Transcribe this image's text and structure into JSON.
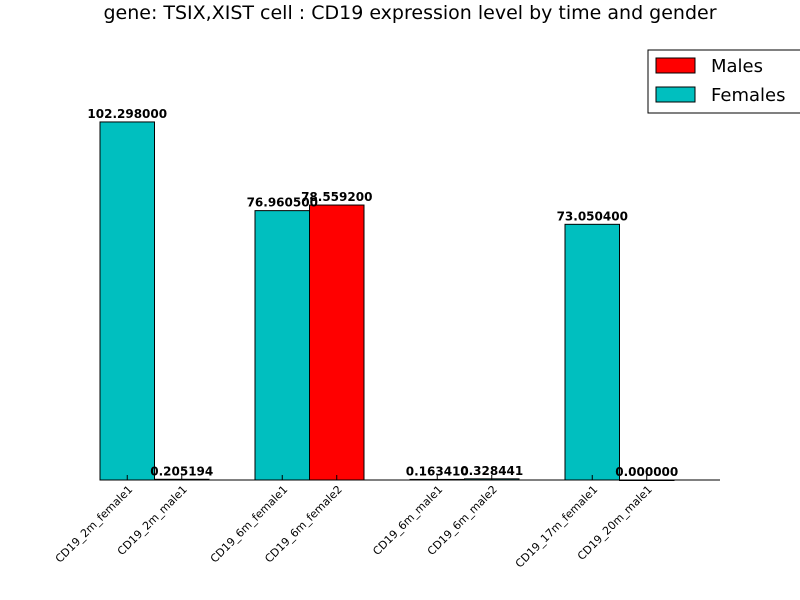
{
  "chart_data": {
    "type": "bar",
    "title": "gene: TSIX,XIST cell : CD19 expression level by time and gender",
    "xlabel": "",
    "ylabel": "",
    "ylim": [
      0,
      120
    ],
    "grid": false,
    "legend": {
      "placement": "top-right",
      "entries": [
        {
          "name": "Males",
          "color": "#ff0000"
        },
        {
          "name": "Females",
          "color": "#00bfbf"
        }
      ]
    },
    "categories": [
      "CD19_2m_female1",
      "CD19_2m_male1",
      "CD19_6m_female1",
      "CD19_6m_female2",
      "CD19_6m_male1",
      "CD19_6m_male2",
      "CD19_17m_female1",
      "CD19_20m_male1"
    ],
    "values": [
      102.298,
      0.205194,
      76.9605,
      78.5592,
      0.16341,
      0.328441,
      73.0504,
      0.0
    ],
    "value_labels": [
      "102.298000",
      "0.205194",
      "76.960500",
      "78.559200",
      "0.163410",
      "0.328441",
      "73.050400",
      "0.000000"
    ],
    "colors": [
      "#00bfbf",
      "#00bfbf",
      "#00bfbf",
      "#ff0000",
      "#00bfbf",
      "#00bfbf",
      "#00bfbf",
      "#00bfbf"
    ]
  }
}
